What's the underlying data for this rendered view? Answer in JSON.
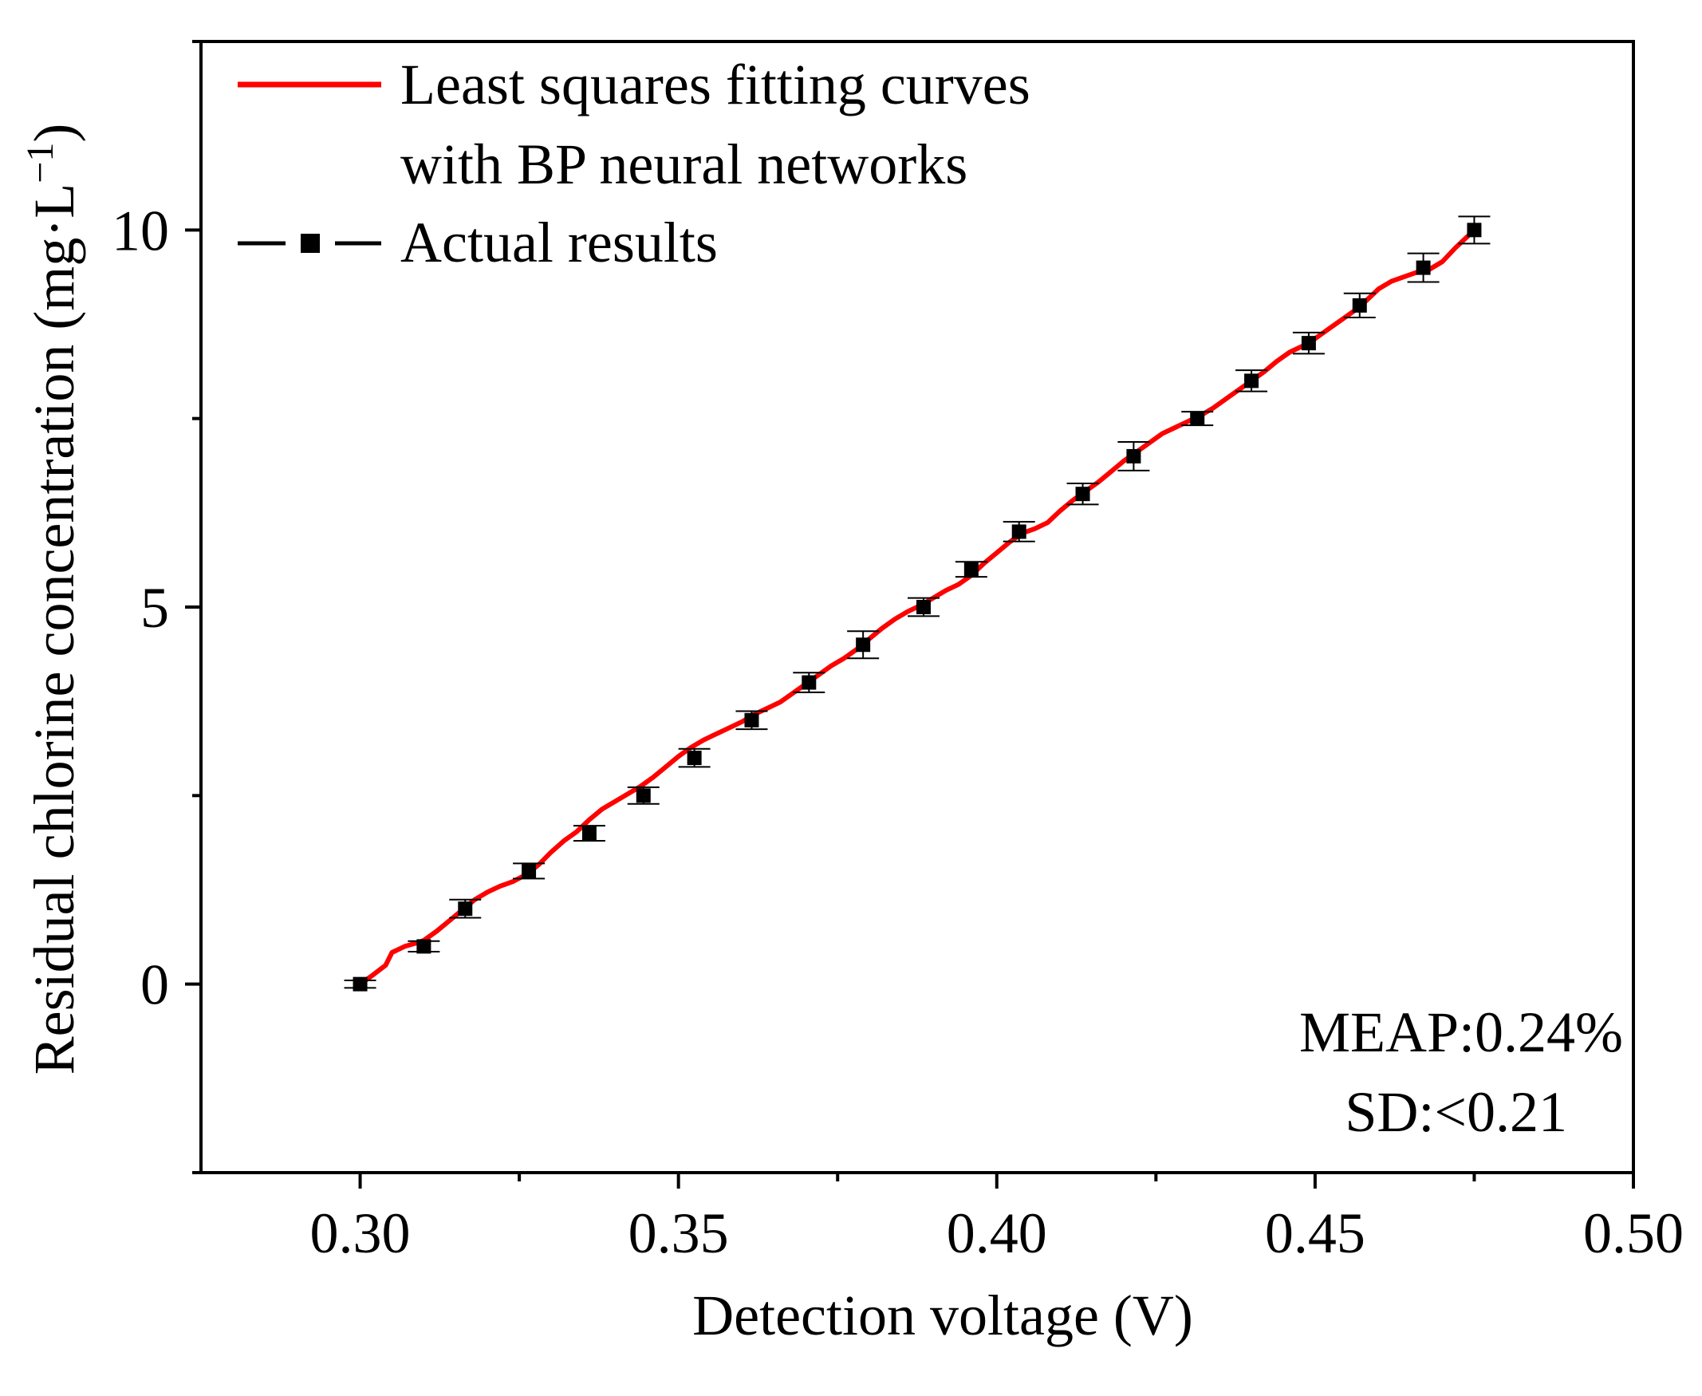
{
  "chart_data": {
    "type": "line",
    "title": "",
    "xlabel": "Detection voltage (V)",
    "ylabel_parts": {
      "main": "Residual chlorine concentration (mg·L",
      "superscript": "−1",
      "close": ")"
    },
    "xlim": [
      0.275,
      0.5
    ],
    "ylim": [
      -2.5,
      12.5
    ],
    "x_ticks": [
      0.3,
      0.35,
      0.4,
      0.45,
      0.5
    ],
    "x_tick_labels": [
      "0.30",
      "0.35",
      "0.40",
      "0.45",
      "0.50"
    ],
    "x_minor_ticks": [
      0.325,
      0.375,
      0.425,
      0.475
    ],
    "y_ticks": [
      0,
      5,
      10
    ],
    "y_tick_labels": [
      "0",
      "5",
      "10"
    ],
    "y_minor_ticks": [
      -2.5,
      2.5,
      7.5,
      12.5
    ],
    "grid": false,
    "legend": {
      "position": "top-left",
      "entries": [
        {
          "lines": [
            "Least squares fitting curves",
            "with BP neural networks"
          ],
          "color": "#ff0000",
          "style": "solid-line"
        },
        {
          "lines": [
            "Actual results"
          ],
          "color": "#000000",
          "style": "dash-square"
        }
      ]
    },
    "series": [
      {
        "name": "Least squares fitting curves with BP neural networks",
        "kind": "line",
        "color": "#ff0000",
        "x": [
          0.3,
          0.302,
          0.304,
          0.305,
          0.307,
          0.309,
          0.31,
          0.312,
          0.314,
          0.316,
          0.318,
          0.32,
          0.322,
          0.324,
          0.326,
          0.328,
          0.33,
          0.332,
          0.334,
          0.336,
          0.338,
          0.34,
          0.342,
          0.344,
          0.346,
          0.348,
          0.35,
          0.352,
          0.354,
          0.356,
          0.358,
          0.36,
          0.362,
          0.364,
          0.366,
          0.368,
          0.37,
          0.372,
          0.374,
          0.376,
          0.378,
          0.38,
          0.382,
          0.384,
          0.386,
          0.388,
          0.39,
          0.392,
          0.394,
          0.396,
          0.398,
          0.4,
          0.402,
          0.404,
          0.406,
          0.408,
          0.41,
          0.412,
          0.414,
          0.416,
          0.418,
          0.42,
          0.422,
          0.424,
          0.426,
          0.428,
          0.43,
          0.432,
          0.434,
          0.436,
          0.438,
          0.44,
          0.442,
          0.444,
          0.446,
          0.448,
          0.45,
          0.452,
          0.454,
          0.456,
          0.458,
          0.46,
          0.462,
          0.464,
          0.466,
          0.468,
          0.47,
          0.472,
          0.474,
          0.475
        ],
        "y": [
          0.0,
          0.12,
          0.25,
          0.42,
          0.5,
          0.55,
          0.58,
          0.7,
          0.84,
          0.98,
          1.12,
          1.22,
          1.3,
          1.36,
          1.45,
          1.58,
          1.75,
          1.9,
          2.02,
          2.18,
          2.32,
          2.42,
          2.52,
          2.62,
          2.74,
          2.88,
          3.02,
          3.14,
          3.24,
          3.32,
          3.4,
          3.48,
          3.58,
          3.66,
          3.74,
          3.86,
          3.98,
          4.1,
          4.22,
          4.32,
          4.44,
          4.58,
          4.72,
          4.84,
          4.94,
          5.02,
          5.12,
          5.22,
          5.3,
          5.42,
          5.58,
          5.72,
          5.86,
          5.98,
          6.04,
          6.12,
          6.28,
          6.42,
          6.54,
          6.66,
          6.8,
          6.94,
          7.06,
          7.18,
          7.3,
          7.38,
          7.46,
          7.54,
          7.64,
          7.76,
          7.88,
          8.0,
          8.12,
          8.26,
          8.38,
          8.46,
          8.56,
          8.68,
          8.8,
          8.92,
          9.06,
          9.22,
          9.32,
          9.38,
          9.44,
          9.48,
          9.58,
          9.76,
          9.92,
          10.0
        ]
      },
      {
        "name": "Actual results",
        "kind": "points-with-errorbars",
        "color": "#000000",
        "x": [
          0.3,
          0.31,
          0.3165,
          0.3265,
          0.336,
          0.3445,
          0.3525,
          0.3615,
          0.3705,
          0.379,
          0.3885,
          0.396,
          0.4035,
          0.4135,
          0.4215,
          0.4315,
          0.44,
          0.449,
          0.457,
          0.467,
          0.475
        ],
        "y": [
          0.0,
          0.5,
          1.0,
          1.5,
          2.0,
          2.5,
          3.0,
          3.5,
          4.0,
          4.5,
          5.0,
          5.5,
          6.0,
          6.5,
          7.0,
          7.5,
          8.0,
          8.5,
          9.0,
          9.5,
          10.0
        ],
        "error": [
          0.05,
          0.07,
          0.12,
          0.1,
          0.1,
          0.11,
          0.12,
          0.12,
          0.13,
          0.18,
          0.12,
          0.1,
          0.13,
          0.14,
          0.19,
          0.09,
          0.14,
          0.14,
          0.16,
          0.19,
          0.18
        ]
      }
    ],
    "annotations": [
      {
        "text": "MEAP:0.24%",
        "position": "bottom-right"
      },
      {
        "text": "SD:<0.21",
        "position": "bottom-right"
      }
    ]
  }
}
